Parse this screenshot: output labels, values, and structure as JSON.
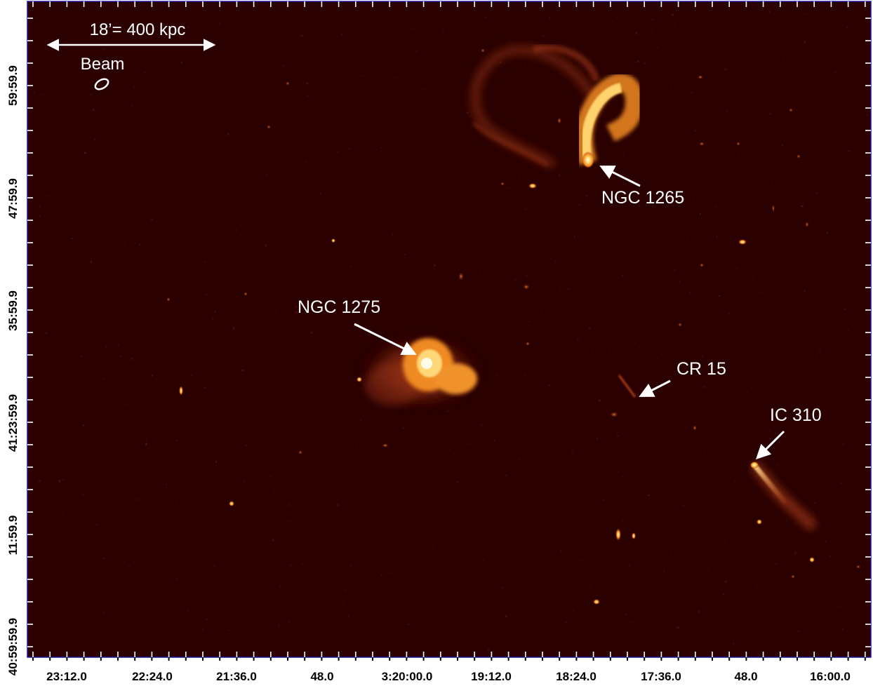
{
  "scale_bar": {
    "label": "18’= 400 kpc"
  },
  "beam": {
    "label": "Beam"
  },
  "annotations": [
    {
      "key": "ngc1265",
      "label": "NGC 1265"
    },
    {
      "key": "ngc1275",
      "label": "NGC 1275"
    },
    {
      "key": "cr15",
      "label": "CR 15"
    },
    {
      "key": "ic310",
      "label": "IC 310"
    }
  ],
  "axes": {
    "y_ticks": [
      "59:59.9",
      "47:59.9",
      "35:59.9",
      "41:23:59.9",
      "11:59.9",
      "40:59:59.9"
    ],
    "x_ticks": [
      "23:12.0",
      "22:24.0",
      "21:36.0",
      "48.0",
      "3:20:00.0",
      "19:12.0",
      "18:24.0",
      "17:36.0",
      "48.0",
      "16:00.0"
    ]
  },
  "colors": {
    "background": "#2a0000",
    "frame": "#1a1aa0",
    "emission_core": "#fff5b0",
    "emission_mid": "#ff9a1a",
    "emission_faint": "#a2321c"
  }
}
